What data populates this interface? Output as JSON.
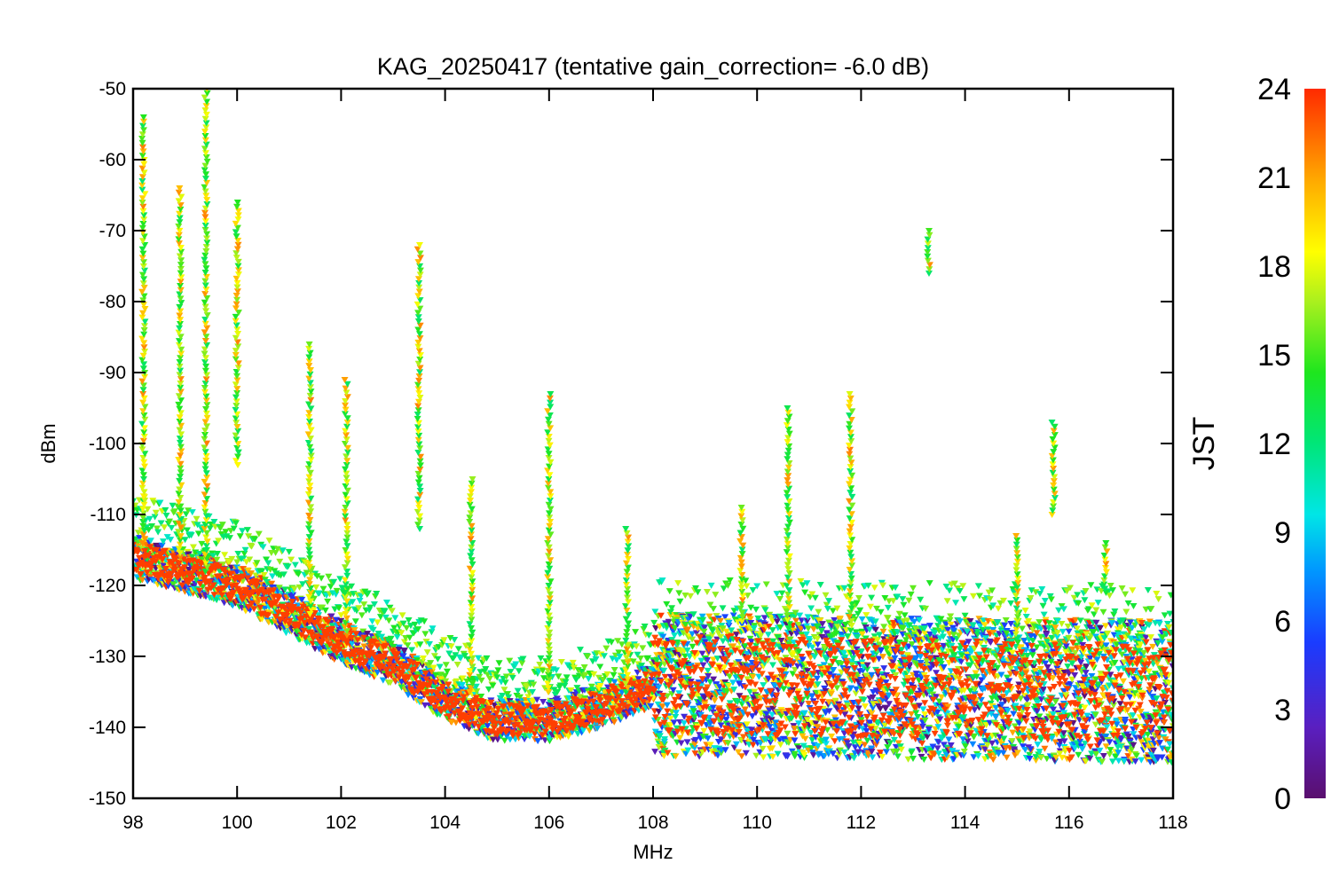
{
  "chart_data": {
    "type": "scatter",
    "title": "KAG_20250417 (tentative gain_correction= -6.0 dB)",
    "xlabel": "MHz",
    "ylabel": "dBm",
    "xlim": [
      98,
      118
    ],
    "ylim": [
      -150,
      -50
    ],
    "x_ticks": [
      "98",
      "100",
      "102",
      "104",
      "106",
      "108",
      "110",
      "112",
      "114",
      "116",
      "118"
    ],
    "y_ticks": [
      "-50",
      "-60",
      "-70",
      "-80",
      "-90",
      "-100",
      "-110",
      "-120",
      "-130",
      "-140",
      "-150"
    ],
    "colorbar": {
      "label": "JST",
      "range": [
        0,
        24
      ],
      "ticks": [
        "0",
        "3",
        "6",
        "9",
        "12",
        "15",
        "18",
        "21",
        "24"
      ]
    },
    "noise_floor": [
      [
        98,
        -116
      ],
      [
        99,
        -118
      ],
      [
        100,
        -120
      ],
      [
        101,
        -124
      ],
      [
        102,
        -128
      ],
      [
        103,
        -131
      ],
      [
        104,
        -136
      ],
      [
        105,
        -139
      ],
      [
        106,
        -139
      ],
      [
        107,
        -137
      ],
      [
        108,
        -134
      ],
      [
        118,
        -135
      ]
    ],
    "series": [
      {
        "x": 98.2,
        "y_top": -54,
        "y_bottom": -114
      },
      {
        "x": 98.9,
        "y_top": -64,
        "y_bottom": -116
      },
      {
        "x": 99.4,
        "y_top": -50,
        "y_bottom": -118
      },
      {
        "x": 100.0,
        "y_top": -66,
        "y_bottom": -103
      },
      {
        "x": 101.4,
        "y_top": -86,
        "y_bottom": -124
      },
      {
        "x": 102.1,
        "y_top": -91,
        "y_bottom": -127
      },
      {
        "x": 103.5,
        "y_top": -72,
        "y_bottom": -112
      },
      {
        "x": 104.5,
        "y_top": -105,
        "y_bottom": -135
      },
      {
        "x": 106.0,
        "y_top": -93,
        "y_bottom": -135
      },
      {
        "x": 107.5,
        "y_top": -112,
        "y_bottom": -135
      },
      {
        "x": 109.7,
        "y_top": -109,
        "y_bottom": -125
      },
      {
        "x": 110.6,
        "y_top": -95,
        "y_bottom": -126
      },
      {
        "x": 111.8,
        "y_top": -93,
        "y_bottom": -125
      },
      {
        "x": 113.3,
        "y_top": -70,
        "y_bottom": -76
      },
      {
        "x": 115.0,
        "y_top": -113,
        "y_bottom": -128
      },
      {
        "x": 115.7,
        "y_top": -97,
        "y_bottom": -110
      },
      {
        "x": 116.7,
        "y_top": -114,
        "y_bottom": -121
      }
    ]
  }
}
